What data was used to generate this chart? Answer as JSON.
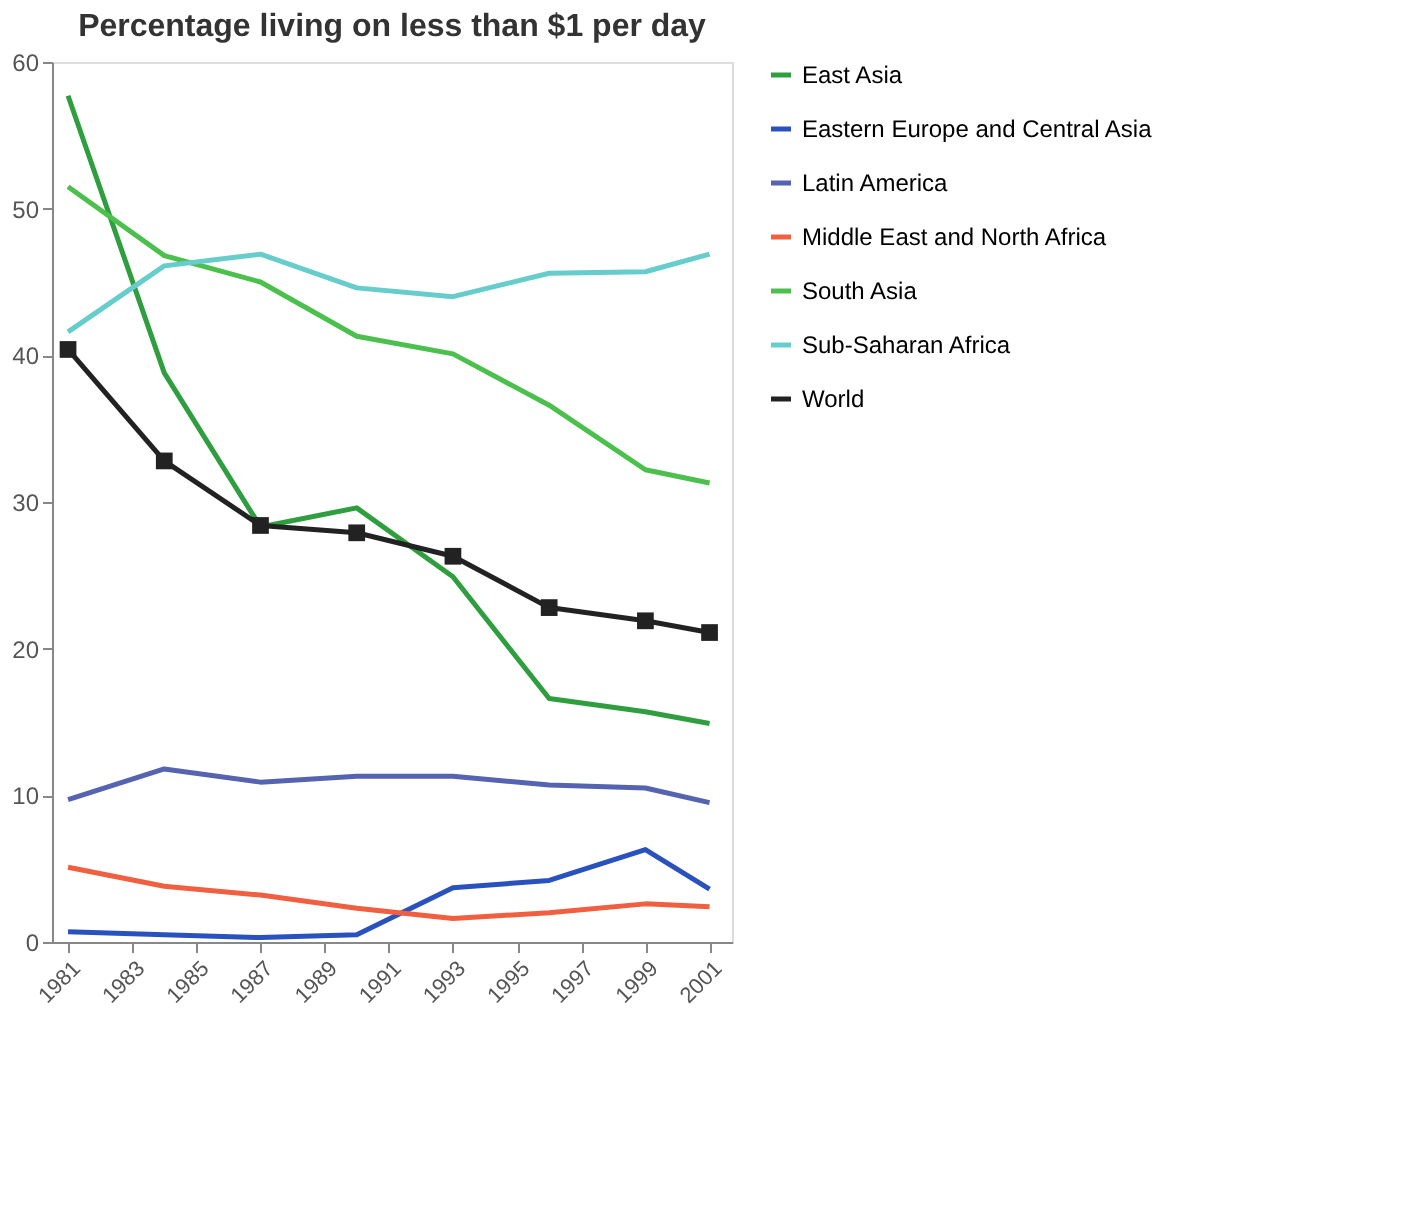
{
  "chart_data": {
    "type": "line",
    "title": "Percentage living on less than $1 per day",
    "x": [
      1981,
      1984,
      1987,
      1990,
      1993,
      1996,
      1999,
      2001
    ],
    "xlim": [
      1980.5,
      2001.7
    ],
    "xticks": [
      1981,
      1983,
      1985,
      1987,
      1989,
      1991,
      1993,
      1995,
      1997,
      1999,
      2001
    ],
    "ylim": [
      0,
      60
    ],
    "yticks": [
      0,
      10,
      20,
      30,
      40,
      50,
      60
    ],
    "grid": false,
    "legend": "right",
    "marker": "none",
    "line_style": "solid",
    "series": [
      {
        "name": "East Asia",
        "color": "#2e9e3e",
        "values": [
          57.7,
          38.8,
          28.3,
          29.6,
          24.9,
          16.6,
          15.7,
          14.9
        ]
      },
      {
        "name": "Eastern Europe and Central Asia",
        "color": "#2a52be",
        "values": [
          0.7,
          0.5,
          0.3,
          0.5,
          3.7,
          4.2,
          6.3,
          3.6
        ]
      },
      {
        "name": "Latin America",
        "color": "#5563b0",
        "values": [
          9.7,
          11.8,
          10.9,
          11.3,
          11.3,
          10.7,
          10.5,
          9.5
        ]
      },
      {
        "name": "Middle East and North Africa",
        "color": "#f06040",
        "values": [
          5.1,
          3.8,
          3.2,
          2.3,
          1.6,
          2.0,
          2.6,
          2.4
        ]
      },
      {
        "name": "South Asia",
        "color": "#4cc04c",
        "values": [
          51.5,
          46.8,
          45.0,
          41.3,
          40.1,
          36.6,
          32.2,
          31.3
        ]
      },
      {
        "name": "Sub-Saharan Africa",
        "color": "#66cccc",
        "values": [
          41.6,
          46.1,
          46.9,
          44.6,
          44.0,
          45.6,
          45.7,
          46.9
        ]
      },
      {
        "name": "World",
        "color": "#222222",
        "marker": "square",
        "values": [
          40.4,
          32.8,
          28.4,
          27.9,
          26.3,
          22.8,
          21.9,
          21.1
        ]
      }
    ]
  }
}
